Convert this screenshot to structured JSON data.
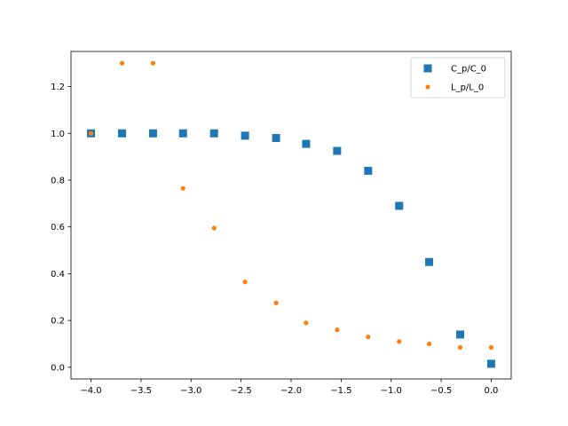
{
  "chart_data": {
    "type": "scatter",
    "title": "",
    "xlabel": "",
    "ylabel": "",
    "xlim": [
      -4.2,
      0.2
    ],
    "ylim": [
      -0.05,
      1.35
    ],
    "grid": false,
    "legend_position": "top-right",
    "x_ticks": [
      -4.0,
      -3.5,
      -3.0,
      -2.5,
      -2.0,
      -1.5,
      -1.0,
      -0.5,
      0.0
    ],
    "x_tick_labels": [
      "−4.0",
      "−3.5",
      "−3.0",
      "−2.5",
      "−2.0",
      "−1.5",
      "−1.0",
      "−0.5",
      "0.0"
    ],
    "y_ticks": [
      0.0,
      0.2,
      0.4,
      0.6,
      0.8,
      1.0,
      1.2
    ],
    "y_tick_labels": [
      "0.0",
      "0.2",
      "0.4",
      "0.6",
      "0.8",
      "1.0",
      "1.2"
    ],
    "series": [
      {
        "name": "C_p/C_0",
        "marker": "square",
        "color": "#1f77b4",
        "x": [
          -4.0,
          -3.69,
          -3.38,
          -3.08,
          -2.77,
          -2.46,
          -2.15,
          -1.85,
          -1.54,
          -1.23,
          -0.92,
          -0.62,
          -0.31,
          0.0
        ],
        "y": [
          1.0,
          1.0,
          1.0,
          1.0,
          1.0,
          0.99,
          0.98,
          0.955,
          0.925,
          0.84,
          0.69,
          0.45,
          0.14,
          0.015
        ]
      },
      {
        "name": "L_p/L_0",
        "marker": "circle",
        "color": "#ff7f0e",
        "x": [
          -4.0,
          -3.69,
          -3.38,
          -3.08,
          -2.77,
          -2.46,
          -2.15,
          -1.85,
          -1.54,
          -1.23,
          -0.92,
          -0.62,
          -0.31,
          0.0
        ],
        "y": [
          1.0,
          1.3,
          1.3,
          0.765,
          0.595,
          0.365,
          0.275,
          0.19,
          0.16,
          0.13,
          0.11,
          0.1,
          0.085,
          0.085
        ]
      }
    ]
  }
}
